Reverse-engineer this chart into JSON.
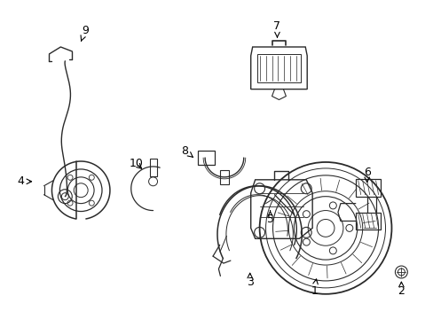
{
  "background_color": "#ffffff",
  "line_color": "#2a2a2a",
  "label_color": "#000000",
  "figsize": [
    4.89,
    3.6
  ],
  "dpi": 100,
  "labels": {
    "1": [
      355,
      330,
      358,
      312
    ],
    "2": [
      454,
      330,
      454,
      318
    ],
    "3": [
      282,
      320,
      282,
      308
    ],
    "4": [
      22,
      205,
      38,
      205
    ],
    "5": [
      305,
      248,
      305,
      238
    ],
    "6": [
      415,
      195,
      415,
      207
    ],
    "7": [
      313,
      28,
      313,
      42
    ],
    "8": [
      208,
      170,
      218,
      178
    ],
    "9": [
      95,
      33,
      90,
      46
    ],
    "10": [
      153,
      185,
      162,
      193
    ]
  }
}
